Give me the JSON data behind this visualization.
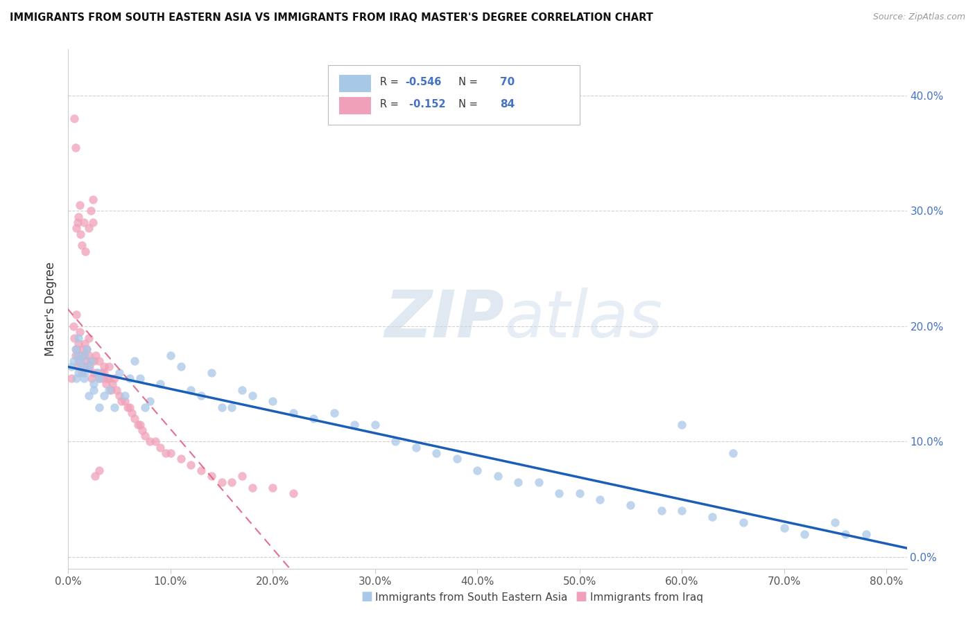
{
  "title": "IMMIGRANTS FROM SOUTH EASTERN ASIA VS IMMIGRANTS FROM IRAQ MASTER'S DEGREE CORRELATION CHART",
  "source": "Source: ZipAtlas.com",
  "ylabel": "Master's Degree",
  "xlim": [
    0.0,
    0.82
  ],
  "ylim": [
    -0.01,
    0.44
  ],
  "R_blue": -0.546,
  "N_blue": 70,
  "R_pink": -0.152,
  "N_pink": 84,
  "blue_color": "#a8c8e8",
  "pink_color": "#f0a0b8",
  "blue_line_color": "#1a5eb8",
  "pink_line_color": "#e06080",
  "legend_blue_label": "Immigrants from South Eastern Asia",
  "legend_pink_label": "Immigrants from Iraq",
  "blue_x": [
    0.003,
    0.005,
    0.007,
    0.008,
    0.009,
    0.01,
    0.01,
    0.012,
    0.013,
    0.015,
    0.015,
    0.016,
    0.018,
    0.02,
    0.02,
    0.022,
    0.025,
    0.025,
    0.028,
    0.03,
    0.03,
    0.035,
    0.04,
    0.045,
    0.05,
    0.055,
    0.06,
    0.065,
    0.07,
    0.075,
    0.08,
    0.09,
    0.1,
    0.11,
    0.12,
    0.13,
    0.14,
    0.15,
    0.16,
    0.17,
    0.18,
    0.2,
    0.22,
    0.24,
    0.26,
    0.28,
    0.3,
    0.32,
    0.34,
    0.36,
    0.38,
    0.4,
    0.42,
    0.44,
    0.46,
    0.48,
    0.5,
    0.52,
    0.55,
    0.58,
    0.6,
    0.63,
    0.66,
    0.7,
    0.72,
    0.75,
    0.76,
    0.78,
    0.6,
    0.65
  ],
  "blue_y": [
    0.165,
    0.17,
    0.18,
    0.155,
    0.175,
    0.16,
    0.19,
    0.17,
    0.165,
    0.155,
    0.175,
    0.16,
    0.18,
    0.165,
    0.14,
    0.17,
    0.15,
    0.145,
    0.16,
    0.155,
    0.13,
    0.14,
    0.145,
    0.13,
    0.16,
    0.14,
    0.155,
    0.17,
    0.155,
    0.13,
    0.135,
    0.15,
    0.175,
    0.165,
    0.145,
    0.14,
    0.16,
    0.13,
    0.13,
    0.145,
    0.14,
    0.135,
    0.125,
    0.12,
    0.125,
    0.115,
    0.115,
    0.1,
    0.095,
    0.09,
    0.085,
    0.075,
    0.07,
    0.065,
    0.065,
    0.055,
    0.055,
    0.05,
    0.045,
    0.04,
    0.04,
    0.035,
    0.03,
    0.025,
    0.02,
    0.03,
    0.02,
    0.02,
    0.115,
    0.09
  ],
  "pink_x": [
    0.003,
    0.005,
    0.006,
    0.007,
    0.008,
    0.008,
    0.009,
    0.01,
    0.01,
    0.011,
    0.012,
    0.013,
    0.014,
    0.015,
    0.015,
    0.016,
    0.017,
    0.018,
    0.019,
    0.02,
    0.02,
    0.021,
    0.022,
    0.023,
    0.025,
    0.025,
    0.027,
    0.028,
    0.03,
    0.03,
    0.032,
    0.033,
    0.035,
    0.035,
    0.037,
    0.038,
    0.04,
    0.04,
    0.042,
    0.043,
    0.045,
    0.047,
    0.05,
    0.052,
    0.055,
    0.058,
    0.06,
    0.062,
    0.065,
    0.068,
    0.07,
    0.072,
    0.075,
    0.08,
    0.085,
    0.09,
    0.095,
    0.1,
    0.11,
    0.12,
    0.13,
    0.14,
    0.15,
    0.16,
    0.17,
    0.18,
    0.2,
    0.22,
    0.024,
    0.006,
    0.007,
    0.008,
    0.009,
    0.01,
    0.011,
    0.012,
    0.013,
    0.015,
    0.017,
    0.02,
    0.022,
    0.024,
    0.026,
    0.03
  ],
  "pink_y": [
    0.155,
    0.2,
    0.19,
    0.175,
    0.21,
    0.18,
    0.165,
    0.17,
    0.185,
    0.195,
    0.175,
    0.16,
    0.18,
    0.165,
    0.175,
    0.185,
    0.17,
    0.18,
    0.165,
    0.175,
    0.19,
    0.165,
    0.17,
    0.155,
    0.17,
    0.16,
    0.175,
    0.16,
    0.155,
    0.17,
    0.16,
    0.155,
    0.16,
    0.165,
    0.15,
    0.155,
    0.155,
    0.165,
    0.145,
    0.15,
    0.155,
    0.145,
    0.14,
    0.135,
    0.135,
    0.13,
    0.13,
    0.125,
    0.12,
    0.115,
    0.115,
    0.11,
    0.105,
    0.1,
    0.1,
    0.095,
    0.09,
    0.09,
    0.085,
    0.08,
    0.075,
    0.07,
    0.065,
    0.065,
    0.07,
    0.06,
    0.06,
    0.055,
    0.31,
    0.38,
    0.355,
    0.285,
    0.29,
    0.295,
    0.305,
    0.28,
    0.27,
    0.29,
    0.265,
    0.285,
    0.3,
    0.29,
    0.07,
    0.075
  ]
}
